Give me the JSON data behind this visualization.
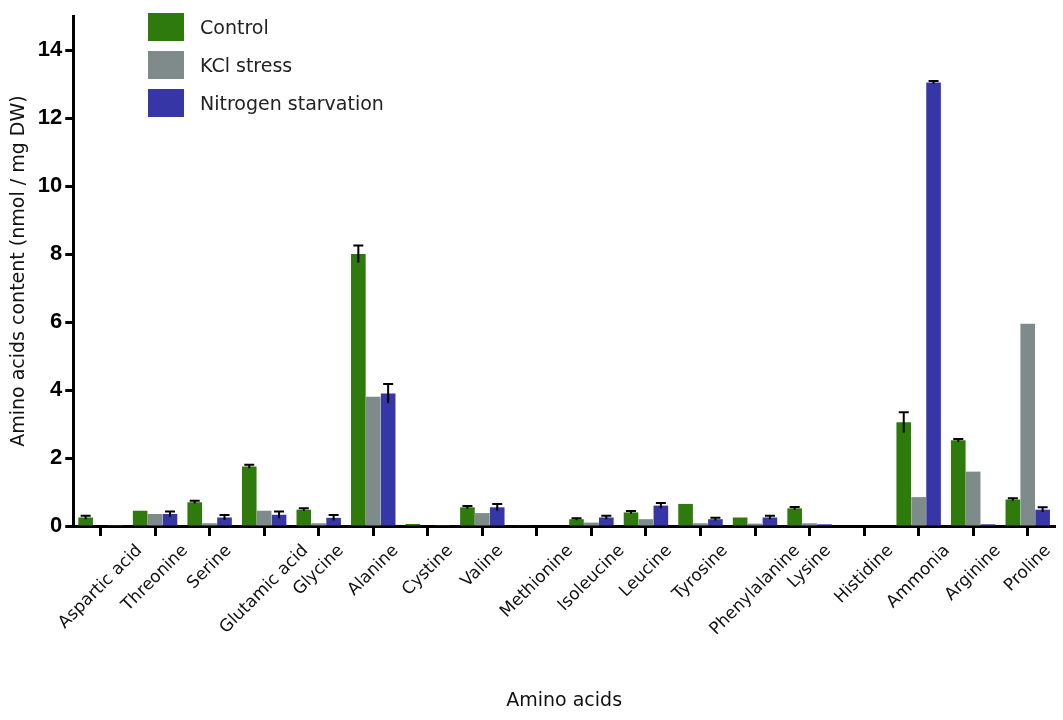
{
  "chart_data": {
    "type": "bar",
    "xlabel": "Amino acids",
    "ylabel": "Amino acids content (nmol / mg DW)",
    "categories": [
      "Aspartic acid",
      "Threonine",
      "Serine",
      "Glutamic acid",
      "Glycine",
      "Alanine",
      "Cystine",
      "Valine",
      "Methionine",
      "Isoleucine",
      "Leucine",
      "Tyrosine",
      "Phenylalanine",
      "Lysine",
      "Histidine",
      "Ammonia",
      "Arginine",
      "Proline"
    ],
    "series": [
      {
        "name": "Control",
        "color": "#2e7a0c",
        "values": [
          0.25,
          0.45,
          0.7,
          1.75,
          0.48,
          8.0,
          0.06,
          0.55,
          0.02,
          0.2,
          0.4,
          0.65,
          0.25,
          0.52,
          0,
          3.05,
          2.52,
          0.78
        ],
        "errors": [
          0.05,
          null,
          0.04,
          0.05,
          0.04,
          0.25,
          null,
          0.04,
          null,
          0.03,
          0.04,
          null,
          null,
          0.04,
          null,
          0.3,
          0.04,
          0.04
        ]
      },
      {
        "name": "KCl stress",
        "color": "#7f8a8a",
        "values": [
          null,
          0.35,
          0.08,
          0.45,
          0.08,
          3.8,
          null,
          0.38,
          null,
          0.1,
          0.2,
          0.08,
          0.07,
          0.08,
          0,
          0.85,
          1.6,
          5.95
        ]
      },
      {
        "name": "Nitrogen starvation",
        "color": "#3636a6",
        "values": [
          0.03,
          0.35,
          0.25,
          0.33,
          0.24,
          3.9,
          0.03,
          0.55,
          null,
          0.25,
          0.6,
          0.2,
          0.25,
          0.05,
          0,
          13.05,
          0.05,
          0.48
        ],
        "errors": [
          null,
          0.08,
          0.07,
          0.1,
          0.08,
          0.28,
          null,
          0.1,
          null,
          0.05,
          0.08,
          0.04,
          0.05,
          null,
          null,
          0.04,
          null,
          0.07
        ]
      }
    ],
    "ylim": [
      0,
      15
    ],
    "yticks": [
      0,
      2,
      4,
      6,
      8,
      10,
      12,
      14
    ],
    "grid": false,
    "legend": "top left"
  }
}
